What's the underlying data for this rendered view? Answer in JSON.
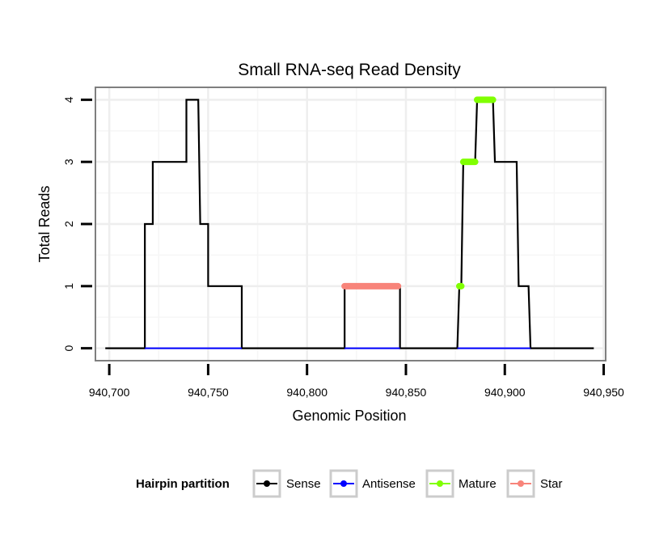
{
  "chart_data": {
    "type": "line",
    "title": "Small RNA-seq Read Density",
    "xlabel": "Genomic Position",
    "ylabel": "Total Reads",
    "xlim": [
      940693,
      940951
    ],
    "ylim": [
      -0.2,
      4.2
    ],
    "x_ticks": [
      940700,
      940750,
      940800,
      940850,
      940900,
      940950
    ],
    "x_tick_labels": [
      "940,700",
      "940,750",
      "940,800",
      "940,850",
      "940,900",
      "940,950"
    ],
    "y_ticks": [
      0,
      1,
      2,
      3,
      4
    ],
    "y_tick_labels": [
      "0",
      "1",
      "2",
      "3",
      "4"
    ],
    "grid": true,
    "legend": {
      "title": "Hairpin partition",
      "position": "bottom",
      "entries": [
        "Sense",
        "Antisense",
        "Mature",
        "Star"
      ]
    },
    "series": [
      {
        "name": "Sense",
        "color": "#000000",
        "style": "step-line",
        "points": [
          [
            940698,
            0
          ],
          [
            940718,
            0
          ],
          [
            940718,
            2
          ],
          [
            940722,
            2
          ],
          [
            940722,
            3
          ],
          [
            940739,
            3
          ],
          [
            940739,
            4
          ],
          [
            940743,
            4
          ],
          [
            940743,
            4
          ],
          [
            940745,
            4
          ],
          [
            940746,
            2
          ],
          [
            940750,
            2
          ],
          [
            940750,
            1
          ],
          [
            940767,
            1
          ],
          [
            940767,
            0
          ],
          [
            940819,
            0
          ],
          [
            940819,
            1
          ],
          [
            940847,
            1
          ],
          [
            940847,
            0
          ],
          [
            940876,
            0
          ],
          [
            940877,
            1
          ],
          [
            940878,
            1
          ],
          [
            940879,
            3
          ],
          [
            940885,
            3
          ],
          [
            940886,
            4
          ],
          [
            940894,
            4
          ],
          [
            940895,
            3
          ],
          [
            940906,
            3
          ],
          [
            940907,
            1
          ],
          [
            940912,
            1
          ],
          [
            940913,
            0
          ],
          [
            940945,
            0
          ]
        ]
      },
      {
        "name": "Antisense",
        "color": "#0000ff",
        "style": "line",
        "points": [
          [
            940718,
            0
          ],
          [
            940767,
            0
          ],
          [
            940819,
            0
          ],
          [
            940847,
            0
          ],
          [
            940876,
            0
          ],
          [
            940913,
            0
          ]
        ]
      },
      {
        "name": "Mature",
        "color": "#80ff00",
        "style": "thick-segments",
        "segments": [
          {
            "x": [
              940877,
              940878
            ],
            "y": 1
          },
          {
            "x": [
              940879,
              940885
            ],
            "y": 3
          },
          {
            "x": [
              940886,
              940894
            ],
            "y": 4
          }
        ]
      },
      {
        "name": "Star",
        "color": "#f8847a",
        "style": "thick-segments",
        "segments": [
          {
            "x": [
              940819,
              940846
            ],
            "y": 1
          }
        ]
      }
    ]
  }
}
